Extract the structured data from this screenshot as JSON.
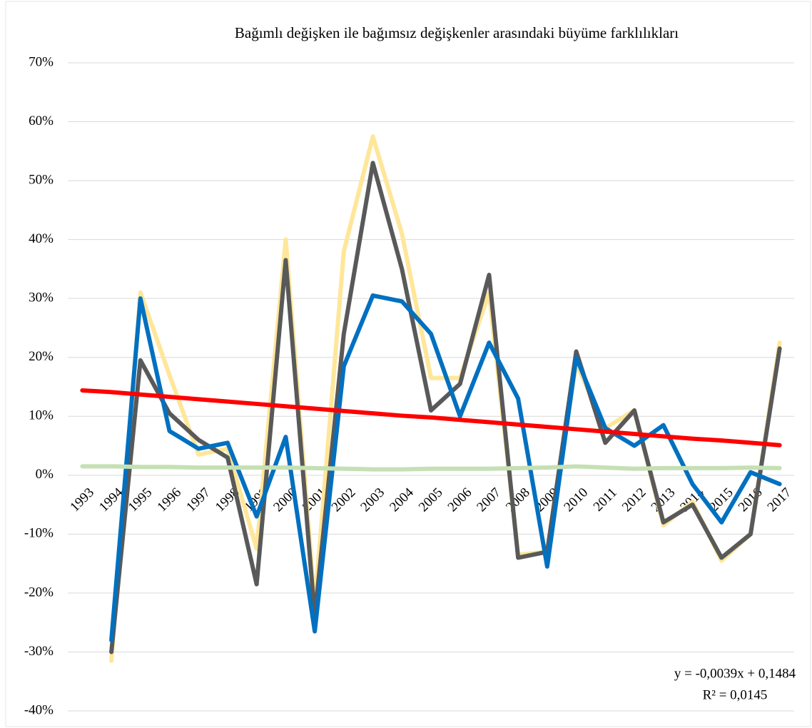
{
  "chart_data": {
    "type": "line",
    "title": "Bağımlı değişken ile bağımsız değişkenler arasındaki büyüme farklılıkları",
    "categories": [
      "1993",
      "1994",
      "1995",
      "1996",
      "1997",
      "1998",
      "1999",
      "2000",
      "2001",
      "2002",
      "2003",
      "2004",
      "2005",
      "2006",
      "2007",
      "2008",
      "2009",
      "2010",
      "2011",
      "2012",
      "2013",
      "2014",
      "2015",
      "2016",
      "2017"
    ],
    "series": [
      {
        "color": "#ffe699",
        "values": [
          null,
          -31.5,
          31,
          17,
          3.5,
          4.5,
          -12.5,
          40,
          -22,
          38,
          57.5,
          41,
          16.5,
          16.5,
          31,
          -13.5,
          -13,
          19,
          8,
          11,
          -8.5,
          -4.5,
          -14.5,
          -10,
          22.5
        ]
      },
      {
        "color": "#595959",
        "values": [
          null,
          -30,
          19.5,
          10.5,
          6,
          3,
          -18.5,
          36.5,
          -24,
          24,
          53,
          35,
          11,
          15.5,
          34,
          -14,
          -13,
          21,
          5.5,
          11,
          -8,
          -5,
          -14,
          -10,
          21.5
        ]
      },
      {
        "color": "#0070c0",
        "values": [
          null,
          -28,
          30,
          7.5,
          4.5,
          5.5,
          -7,
          6.5,
          -26.5,
          18.5,
          30.5,
          29.5,
          24,
          10,
          22.5,
          13,
          -15.5,
          20,
          8,
          5,
          8.5,
          -1.5,
          -8,
          0.5,
          -1.5
        ]
      },
      {
        "color": "#c5e0b4",
        "values": [
          1.5,
          1.5,
          1.4,
          1.4,
          1.3,
          1.3,
          1.3,
          1.3,
          1.2,
          1.1,
          1.0,
          1.0,
          1.1,
          1.1,
          1.1,
          1.2,
          1.3,
          1.5,
          1.3,
          1.1,
          1.2,
          1.2,
          1.2,
          1.3,
          1.2
        ]
      },
      {
        "color": "#ff0000",
        "values": [
          14.4,
          14.1,
          13.7,
          13.3,
          12.9,
          12.5,
          12.1,
          11.7,
          11.3,
          10.9,
          10.5,
          10.1,
          9.8,
          9.4,
          9.0,
          8.6,
          8.2,
          7.8,
          7.4,
          7.0,
          6.6,
          6.2,
          5.9,
          5.5,
          5.1
        ]
      }
    ],
    "ylim": [
      -40,
      70
    ],
    "yticks": [
      {
        "value": -40,
        "label": "-40%"
      },
      {
        "value": -30,
        "label": "-30%"
      },
      {
        "value": -20,
        "label": "-20%"
      },
      {
        "value": -10,
        "label": "-10%"
      },
      {
        "value": 0,
        "label": "0%"
      },
      {
        "value": 10,
        "label": "10%"
      },
      {
        "value": 20,
        "label": "20%"
      },
      {
        "value": 30,
        "label": "30%"
      },
      {
        "value": 40,
        "label": "40%"
      },
      {
        "value": 50,
        "label": "50%"
      },
      {
        "value": 60,
        "label": "60%"
      },
      {
        "value": 70,
        "label": "70%"
      }
    ],
    "grid": true,
    "annotations": [
      "y = -0,0039x + 0,1484",
      "R² = 0,0145"
    ]
  }
}
